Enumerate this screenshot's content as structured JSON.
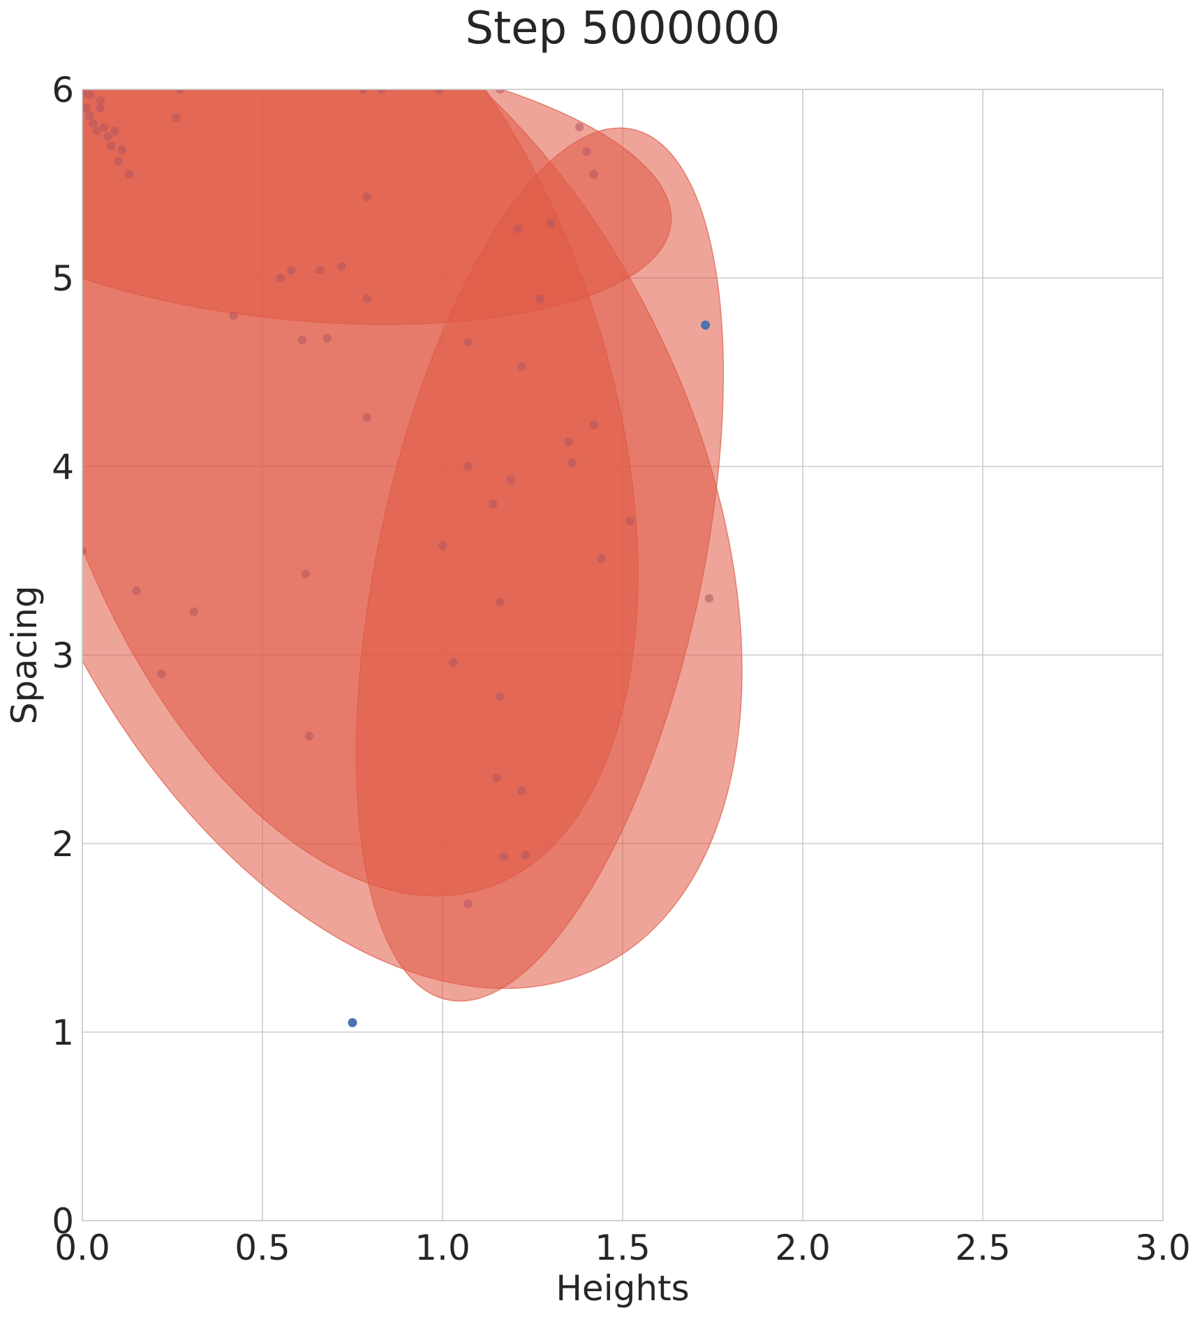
{
  "chart_data": {
    "type": "scatter",
    "title": "Step 5000000",
    "xlabel": "Heights",
    "ylabel": "Spacing",
    "xlim": [
      0.0,
      3.0
    ],
    "ylim": [
      0,
      6
    ],
    "xticks": [
      0.0,
      0.5,
      1.0,
      1.5,
      2.0,
      2.5,
      3.0
    ],
    "xtick_labels": [
      "0.0",
      "0.5",
      "1.0",
      "1.5",
      "2.0",
      "2.5",
      "3.0"
    ],
    "yticks": [
      0,
      1,
      2,
      3,
      4,
      5,
      6
    ],
    "ytick_labels": [
      "0",
      "1",
      "2",
      "3",
      "4",
      "5",
      "6"
    ],
    "grid": true,
    "colors": {
      "ellipse_fill": "#e05a45",
      "ellipse_stroke": "#e05a45",
      "point_covered": "#b05563",
      "point_blue": "#4c72b0",
      "text": "#262626",
      "grid": "#cccccc"
    },
    "ellipses": [
      {
        "name": "ellipse-large-tilted",
        "center": [
          0.77,
          3.95
        ],
        "radii": [
          0.92,
          2.9
        ],
        "angle_deg": 26,
        "opacity": 0.55
      },
      {
        "name": "ellipse-left-tilted",
        "center": [
          0.68,
          4.35
        ],
        "radii": [
          0.78,
          2.72
        ],
        "angle_deg": 18,
        "opacity": 0.55
      },
      {
        "name": "ellipse-right-vertical",
        "center": [
          1.27,
          3.48
        ],
        "radii": [
          0.45,
          2.36
        ],
        "angle_deg": -12,
        "opacity": 0.55
      },
      {
        "name": "ellipse-top-flat",
        "center": [
          0.58,
          5.5
        ],
        "radii": [
          1.06,
          0.72
        ],
        "angle_deg": -6,
        "opacity": 0.55
      }
    ],
    "points_covered": [
      [
        0.0,
        5.98
      ],
      [
        0.01,
        5.9
      ],
      [
        0.02,
        5.86
      ],
      [
        0.03,
        5.82
      ],
      [
        0.04,
        5.78
      ],
      [
        0.05,
        5.9
      ],
      [
        0.06,
        5.8
      ],
      [
        0.07,
        5.75
      ],
      [
        0.08,
        5.7
      ],
      [
        0.09,
        5.78
      ],
      [
        0.1,
        5.62
      ],
      [
        0.02,
        5.97
      ],
      [
        0.05,
        5.94
      ],
      [
        0.11,
        5.68
      ],
      [
        0.13,
        5.55
      ],
      [
        0.26,
        5.85
      ],
      [
        0.27,
        6.0
      ],
      [
        0.78,
        6.0
      ],
      [
        0.83,
        6.0
      ],
      [
        0.99,
        6.0
      ],
      [
        1.16,
        6.0
      ],
      [
        1.38,
        5.8
      ],
      [
        1.4,
        5.67
      ],
      [
        1.42,
        5.55
      ],
      [
        0.79,
        5.43
      ],
      [
        1.21,
        5.26
      ],
      [
        1.3,
        5.29
      ],
      [
        0.55,
        5.0
      ],
      [
        0.58,
        5.04
      ],
      [
        0.66,
        5.04
      ],
      [
        0.72,
        5.06
      ],
      [
        0.79,
        4.89
      ],
      [
        1.27,
        4.89
      ],
      [
        0.42,
        4.8
      ],
      [
        0.61,
        4.67
      ],
      [
        0.68,
        4.68
      ],
      [
        1.07,
        4.66
      ],
      [
        1.22,
        4.53
      ],
      [
        0.79,
        4.26
      ],
      [
        1.42,
        4.22
      ],
      [
        1.35,
        4.13
      ],
      [
        1.36,
        4.02
      ],
      [
        1.07,
        4.0
      ],
      [
        1.19,
        3.93
      ],
      [
        1.14,
        3.8
      ],
      [
        1.52,
        3.71
      ],
      [
        1.0,
        3.58
      ],
      [
        0.0,
        3.55
      ],
      [
        1.44,
        3.51
      ],
      [
        0.62,
        3.43
      ],
      [
        0.15,
        3.34
      ],
      [
        1.74,
        3.3
      ],
      [
        1.16,
        3.28
      ],
      [
        0.31,
        3.23
      ],
      [
        1.03,
        2.96
      ],
      [
        0.22,
        2.9
      ],
      [
        1.16,
        2.78
      ],
      [
        0.63,
        2.57
      ],
      [
        1.15,
        2.35
      ],
      [
        1.22,
        2.28
      ],
      [
        1.17,
        1.93
      ],
      [
        1.23,
        1.94
      ],
      [
        1.07,
        1.68
      ]
    ],
    "points_blue": [
      [
        1.73,
        4.75
      ],
      [
        0.75,
        1.05
      ]
    ]
  }
}
